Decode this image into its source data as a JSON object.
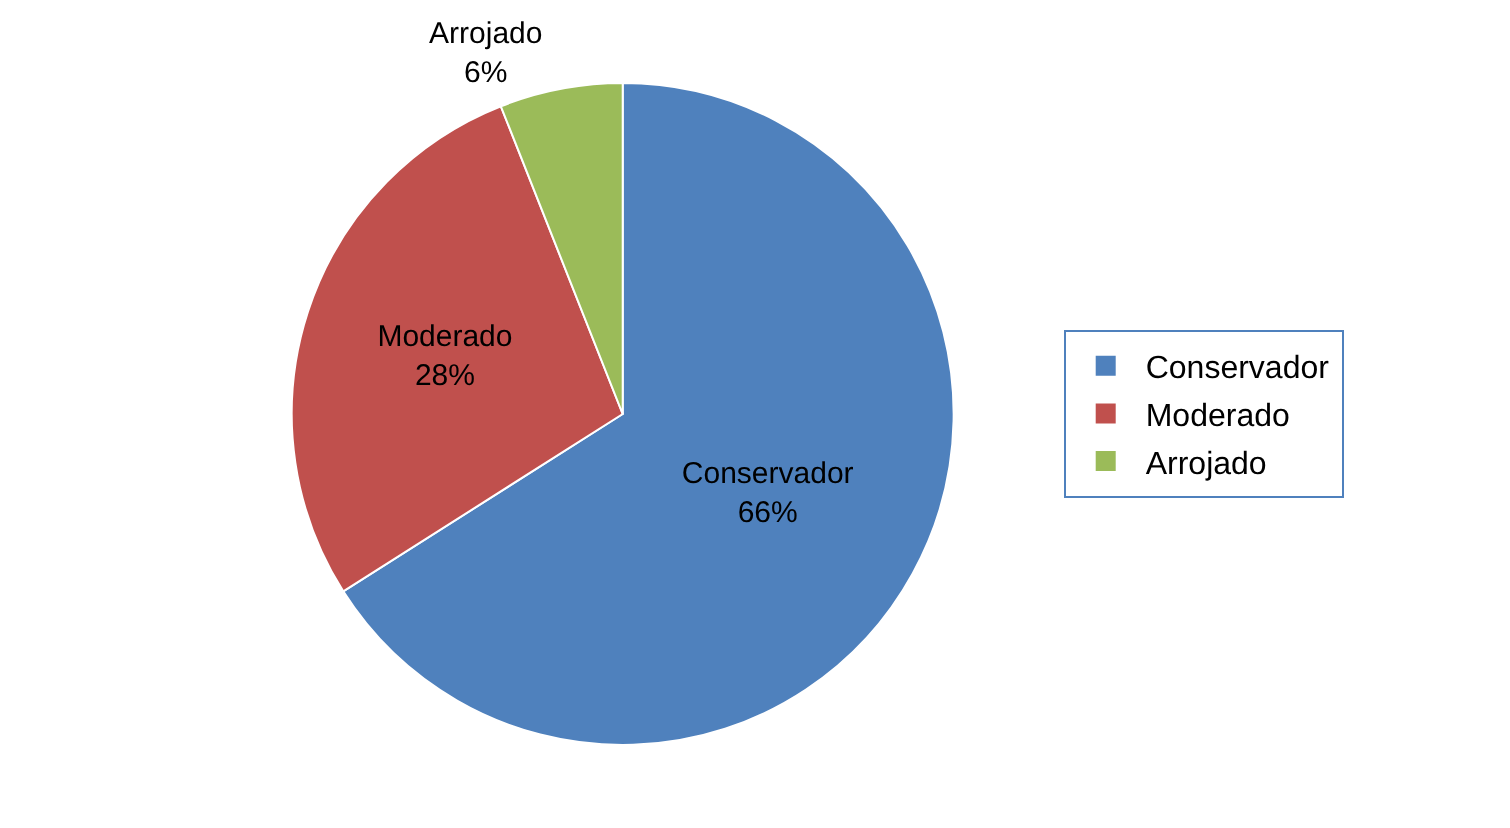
{
  "chart_data": {
    "type": "pie",
    "categories": [
      "Conservador",
      "Moderado",
      "Arrojado"
    ],
    "values": [
      66,
      28,
      6
    ],
    "value_labels": [
      "66%",
      "28%",
      "6%"
    ],
    "colors": [
      "#4f81bd",
      "#c0504d",
      "#9bbb59"
    ],
    "legend": "right"
  }
}
